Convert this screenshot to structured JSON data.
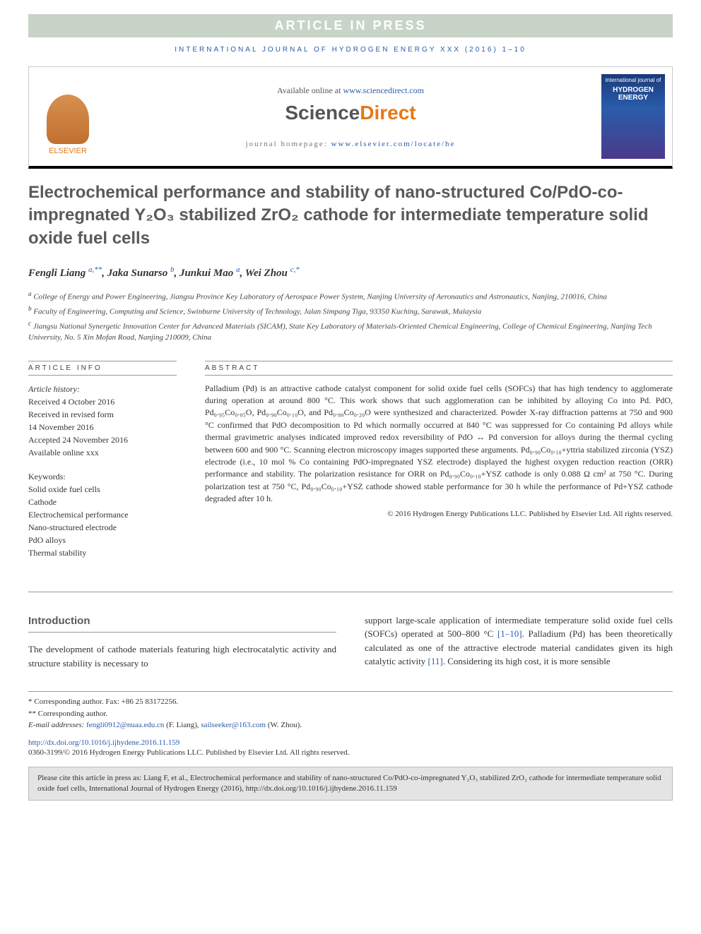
{
  "banner": "ARTICLE IN PRESS",
  "journal_ref": "INTERNATIONAL JOURNAL OF HYDROGEN ENERGY XXX (2016) 1–10",
  "header": {
    "available_text": "Available online at ",
    "available_url": "www.sciencedirect.com",
    "sd_logo_left": "Science",
    "sd_logo_right": "Direct",
    "homepage_label": "journal homepage: ",
    "homepage_url": "www.elsevier.com/locate/he",
    "elsevier_label": "ELSEVIER",
    "cover_top": "international journal of",
    "cover_title": "HYDROGEN ENERGY"
  },
  "title": "Electrochemical performance and stability of nano-structured Co/PdO-co-impregnated Y₂O₃ stabilized ZrO₂ cathode for intermediate temperature solid oxide fuel cells",
  "authors": [
    {
      "name": "Fengli Liang",
      "marks": "a,**"
    },
    {
      "name": "Jaka Sunarso",
      "marks": "b"
    },
    {
      "name": "Junkui Mao",
      "marks": "a"
    },
    {
      "name": "Wei Zhou",
      "marks": "c,*"
    }
  ],
  "affiliations": [
    {
      "mark": "a",
      "text": "College of Energy and Power Engineering, Jiangsu Province Key Laboratory of Aerospace Power System, Nanjing University of Aeronautics and Astronautics, Nanjing, 210016, China"
    },
    {
      "mark": "b",
      "text": "Faculty of Engineering, Computing and Science, Swinburne University of Technology, Jalan Simpang Tiga, 93350 Kuching, Sarawak, Malaysia"
    },
    {
      "mark": "c",
      "text": "Jiangsu National Synergetic Innovation Center for Advanced Materials (SICAM), State Key Laboratory of Materials-Oriented Chemical Engineering, College of Chemical Engineering, Nanjing Tech University, No. 5 Xin Mofan Road, Nanjing 210009, China"
    }
  ],
  "info": {
    "label": "ARTICLE INFO",
    "history_label": "Article history:",
    "history": [
      "Received 4 October 2016",
      "Received in revised form",
      "14 November 2016",
      "Accepted 24 November 2016",
      "Available online xxx"
    ],
    "keywords_label": "Keywords:",
    "keywords": [
      "Solid oxide fuel cells",
      "Cathode",
      "Electrochemical performance",
      "Nano-structured electrode",
      "PdO alloys",
      "Thermal stability"
    ]
  },
  "abstract": {
    "label": "ABSTRACT",
    "text": "Palladium (Pd) is an attractive cathode catalyst component for solid oxide fuel cells (SOFCs) that has high tendency to agglomerate during operation at around 800 °C. This work shows that such agglomeration can be inhibited by alloying Co into Pd. PdO, Pd₀.₉₅Co₀.₀₅O, Pd₀.₉₀Co₀.₁₀O, and Pd₀.₈₀Co₀.₂₀O were synthesized and characterized. Powder X-ray diffraction patterns at 750 and 900 °C confirmed that PdO decomposition to Pd which normally occurred at 840 °C was suppressed for Co containing Pd alloys while thermal gravimetric analyses indicated improved redox reversibility of PdO ↔ Pd conversion for alloys during the thermal cycling between 600 and 900 °C. Scanning electron microscopy images supported these arguments. Pd₀.₉₀Co₀.₁₀+yttria stabilized zirconia (YSZ) electrode (i.e., 10 mol % Co containing PdO-impregnated YSZ electrode) displayed the highest oxygen reduction reaction (ORR) performance and stability. The polarization resistance for ORR on Pd₀.₉₀Co₀.₁₀+YSZ cathode is only 0.088 Ω cm² at 750 °C. During polarization test at 750 °C, Pd₀.₉₀Co₀.₁₀+YSZ cathode showed stable performance for 30 h while the performance of Pd+YSZ cathode degraded after 10 h.",
    "copyright": "© 2016 Hydrogen Energy Publications LLC. Published by Elsevier Ltd. All rights reserved."
  },
  "intro": {
    "heading": "Introduction",
    "col1": "The development of cathode materials featuring high electrocatalytic activity and structure stability is necessary to",
    "col2_p1": "support large-scale application of intermediate temperature solid oxide fuel cells (SOFCs) operated at 500–800 °C ",
    "col2_ref1": "[1–10]",
    "col2_p2": ". Palladium (Pd) has been theoretically calculated as one of the attractive electrode material candidates given its high catalytic activity ",
    "col2_ref2": "[11]",
    "col2_p3": ". Considering its high cost, it is more sensible"
  },
  "footnotes": {
    "corr1": "* Corresponding author. Fax: +86 25 83172256.",
    "corr2": "** Corresponding author.",
    "email_label": "E-mail addresses: ",
    "email1": "fengli0912@nuaa.edu.cn",
    "email1_name": " (F. Liang), ",
    "email2": "sailseeker@163.com",
    "email2_name": " (W. Zhou).",
    "doi": "http://dx.doi.org/10.1016/j.ijhydene.2016.11.159",
    "issn": "0360-3199/© 2016 Hydrogen Energy Publications LLC. Published by Elsevier Ltd. All rights reserved."
  },
  "cite_box": "Please cite this article in press as: Liang F, et al., Electrochemical performance and stability of nano-structured Co/PdO-co-impregnated Y₂O₃ stabilized ZrO₂ cathode for intermediate temperature solid oxide fuel cells, International Journal of Hydrogen Energy (2016), http://dx.doi.org/10.1016/j.ijhydene.2016.11.159",
  "colors": {
    "banner_bg": "#c8d4c8",
    "link": "#2a5caa",
    "orange": "#e67817",
    "heading_gray": "#5a5a5a",
    "cite_bg": "#e4e4e4"
  }
}
